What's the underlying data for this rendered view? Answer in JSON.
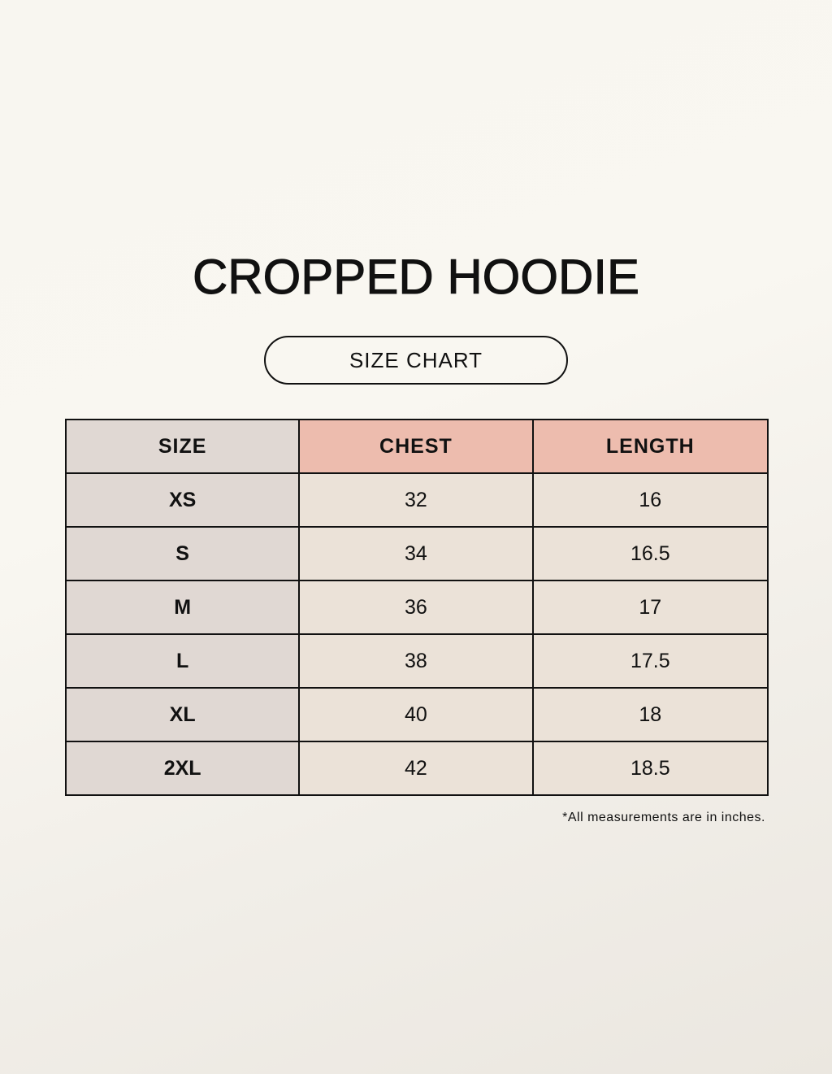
{
  "title": "CROPPED HOODIE",
  "subtitle": "SIZE CHART",
  "colors": {
    "header_accent": "#edbcae",
    "size_column": "#e0d8d3",
    "cells": "#ebe2d8"
  },
  "table": {
    "headers": [
      "SIZE",
      "CHEST",
      "LENGTH"
    ],
    "rows": [
      [
        "XS",
        "32",
        "16"
      ],
      [
        "S",
        "34",
        "16.5"
      ],
      [
        "M",
        "36",
        "17"
      ],
      [
        "L",
        "38",
        "17.5"
      ],
      [
        "XL",
        "40",
        "18"
      ],
      [
        "2XL",
        "42",
        "18.5"
      ]
    ]
  },
  "note": "*All measurements are in inches."
}
